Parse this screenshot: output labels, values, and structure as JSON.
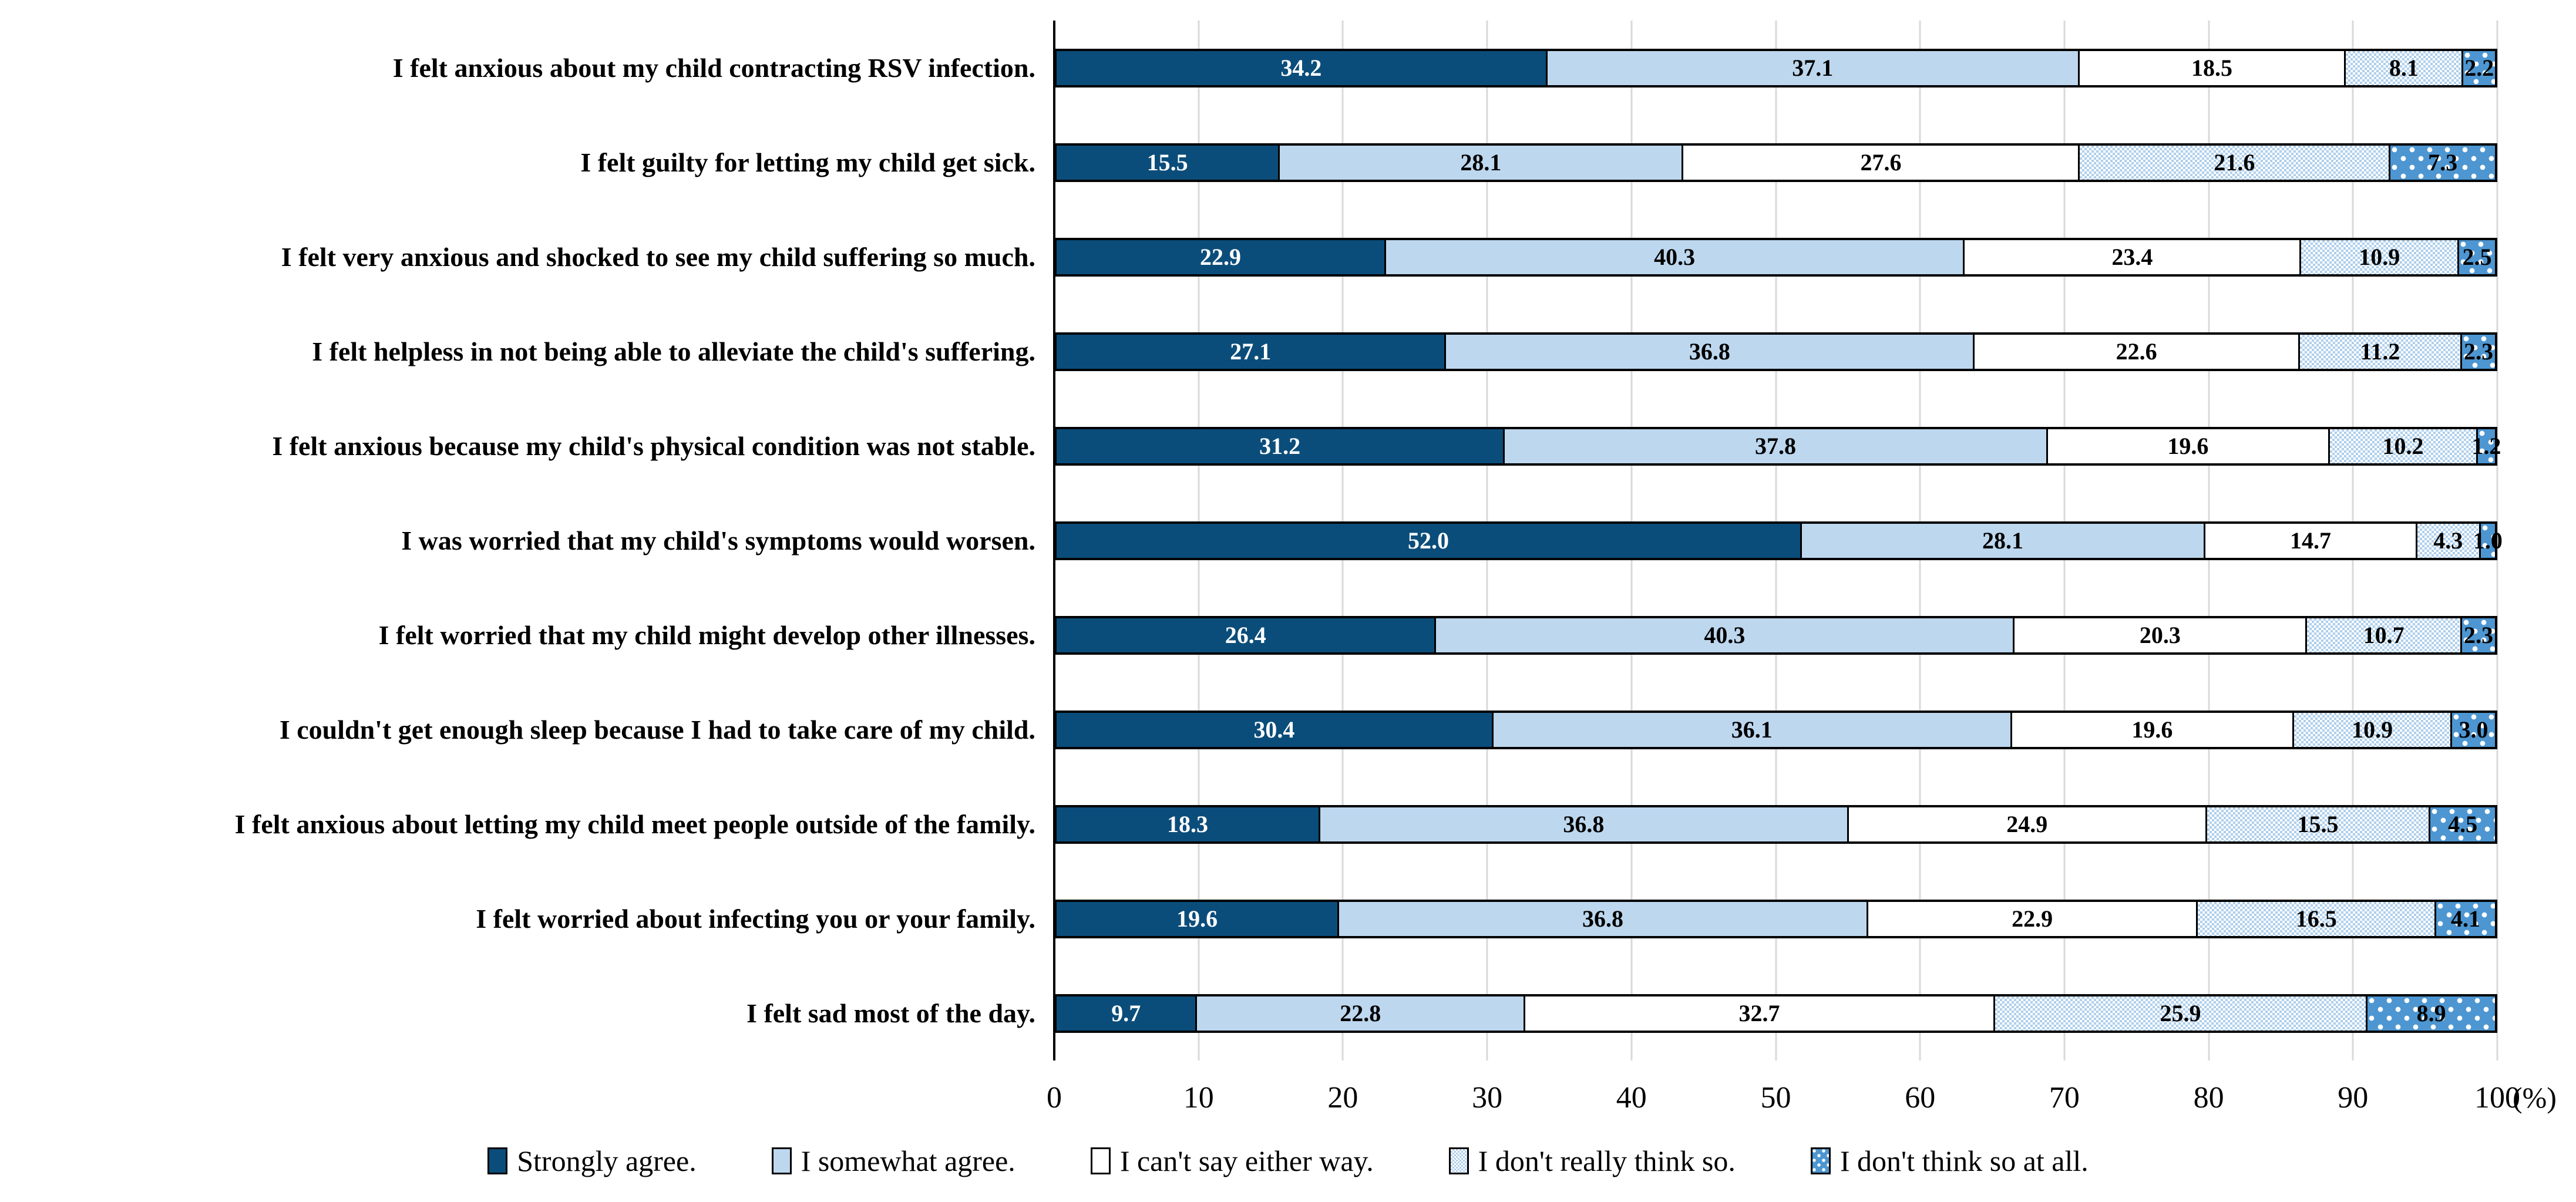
{
  "chart_data": {
    "type": "bar",
    "orientation": "horizontal-stacked",
    "title": "",
    "xlabel": "",
    "ylabel": "",
    "unit_label": "(%)",
    "xlim": [
      0,
      100
    ],
    "x_ticks": [
      0,
      10,
      20,
      30,
      40,
      50,
      60,
      70,
      80,
      90,
      100
    ],
    "grid": true,
    "legend_position": "bottom",
    "categories": [
      "I felt anxious about my child contracting RSV infection.",
      "I felt guilty for letting my child get sick.",
      "I felt very anxious and shocked to see my child suffering so much.",
      "I felt helpless in not being able to alleviate the child's suffering.",
      "I felt anxious because my child's physical condition was not stable.",
      "I was worried that my child's symptoms would worsen.",
      "I felt worried that my child might develop other illnesses.",
      "I couldn't get enough sleep because I had to take care of my child.",
      "I felt anxious about letting my child meet people outside of the family.",
      "I felt worried about infecting you or your family.",
      "I felt sad most of the day."
    ],
    "series": [
      {
        "name": "Strongly agree.",
        "pattern": "solid",
        "color": "#0B4D7A",
        "text_color": "#FFFFFF",
        "values": [
          34.2,
          15.5,
          22.9,
          27.1,
          31.2,
          52.0,
          26.4,
          30.4,
          18.3,
          19.6,
          9.7
        ]
      },
      {
        "name": "I somewhat agree.",
        "pattern": "solid",
        "color": "#BDD7EE",
        "text_color": "#000000",
        "values": [
          37.1,
          28.1,
          40.3,
          36.8,
          37.8,
          28.1,
          40.3,
          36.1,
          36.8,
          36.8,
          22.8
        ]
      },
      {
        "name": "I can't say either way.",
        "pattern": "solid",
        "color": "#FFFFFF",
        "text_color": "#000000",
        "values": [
          18.5,
          27.6,
          23.4,
          22.6,
          19.6,
          14.7,
          20.3,
          19.6,
          24.9,
          22.9,
          32.7
        ]
      },
      {
        "name": "I don't really think so.",
        "pattern": "checker",
        "color": "#AECFEC",
        "text_color": "#000000",
        "values": [
          8.1,
          21.6,
          10.9,
          11.2,
          10.2,
          4.3,
          10.7,
          10.9,
          15.5,
          16.5,
          25.9
        ]
      },
      {
        "name": "I don't think so at all.",
        "pattern": "dots",
        "color": "#4D96D1",
        "text_color": "#000000",
        "values": [
          2.2,
          7.3,
          2.5,
          2.3,
          1.2,
          1.0,
          2.3,
          3.0,
          4.5,
          4.1,
          8.9
        ]
      }
    ],
    "style": {
      "gridline_color": "#D9D9D9",
      "axis_color": "#000000",
      "bar_border_color": "#000000",
      "background": "#FFFFFF"
    }
  }
}
